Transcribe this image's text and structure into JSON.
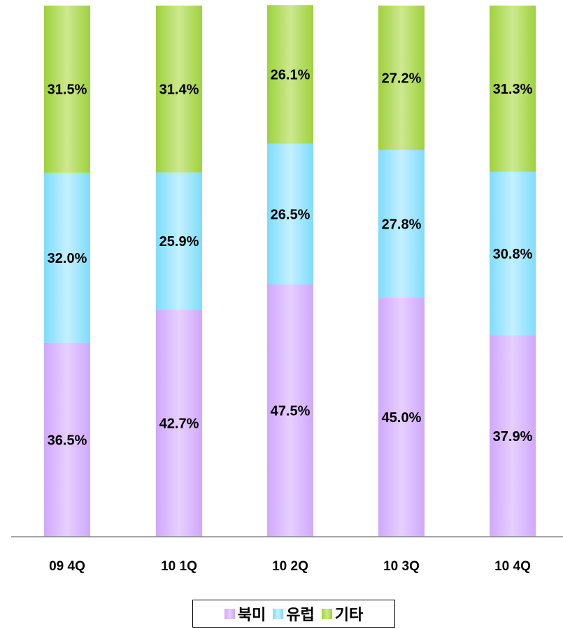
{
  "chart_data": {
    "type": "bar",
    "stacked": true,
    "percent": true,
    "categories": [
      "09 4Q",
      "10 1Q",
      "10 2Q",
      "10 3Q",
      "10 4Q"
    ],
    "series": [
      {
        "name": "북미",
        "values": [
          36.5,
          42.7,
          47.5,
          45.0,
          37.9
        ],
        "labels": [
          "36.5%",
          "42.7%",
          "47.5%",
          "45.0%",
          "37.9%"
        ],
        "color": "#d0a8fc",
        "colorLight": "#e6cfff"
      },
      {
        "name": "유럽",
        "values": [
          32.0,
          25.9,
          26.5,
          27.8,
          30.8
        ],
        "labels": [
          "32.0%",
          "25.9%",
          "26.5%",
          "27.8%",
          "30.8%"
        ],
        "color": "#7fdcfa",
        "colorLight": "#c4f0ff"
      },
      {
        "name": "기타",
        "values": [
          31.5,
          31.4,
          26.1,
          27.2,
          31.3
        ],
        "labels": [
          "31.5%",
          "31.4%",
          "26.1%",
          "27.2%",
          "31.3%"
        ],
        "color": "#9ed13c",
        "colorLight": "#cde890"
      }
    ],
    "ylim": [
      0,
      100
    ],
    "grid": false,
    "legend": "bottom"
  }
}
